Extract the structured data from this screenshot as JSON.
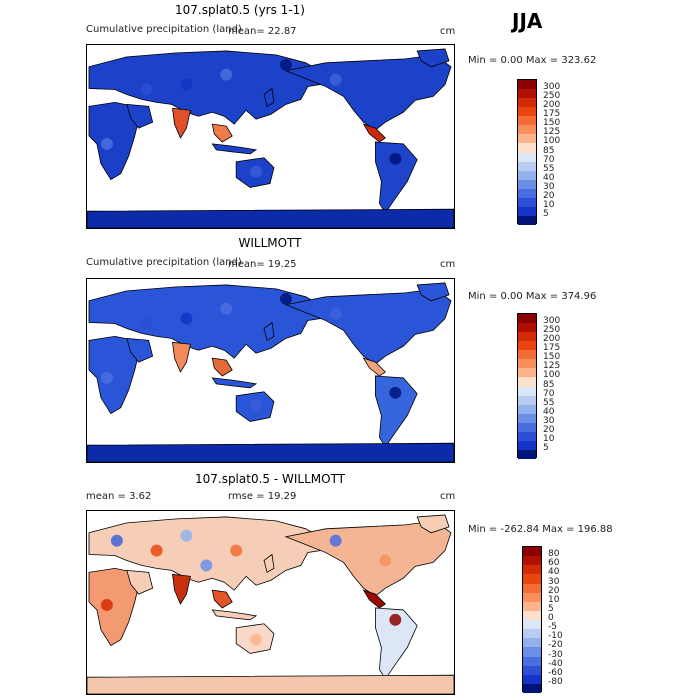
{
  "season": "JJA",
  "panels": [
    {
      "title": "107.splat0.5 (yrs 1-1)",
      "subtitle": "Cumulative precipitation (land)",
      "stat1": "mean=   22.87",
      "stat2": "",
      "units": "cm",
      "minmax": "Min =     0.00 Max = 323.62",
      "levels": [
        "300",
        "250",
        "200",
        "175",
        "150",
        "125",
        "100",
        "85",
        "70",
        "55",
        "40",
        "30",
        "20",
        "10",
        "5"
      ],
      "colors": [
        "#8b0000",
        "#b01000",
        "#d42a05",
        "#e8460e",
        "#f36c35",
        "#f8905e",
        "#fbb48c",
        "#fde0cc",
        "#dbe7f7",
        "#b8cdf1",
        "#93b1ec",
        "#6c8fe6",
        "#4a6ee0",
        "#2c4fd5",
        "#1334c4",
        "#00147a"
      ]
    },
    {
      "title": "WILLMOTT",
      "subtitle": "Cumulative precipitation (land)",
      "stat1": "mean=   19.25",
      "stat2": "",
      "units": "cm",
      "minmax": "Min =     0.00 Max = 374.96",
      "levels": [
        "300",
        "250",
        "200",
        "175",
        "150",
        "125",
        "100",
        "85",
        "70",
        "55",
        "40",
        "30",
        "20",
        "10",
        "5"
      ],
      "colors": [
        "#8b0000",
        "#b01000",
        "#d42a05",
        "#e8460e",
        "#f36c35",
        "#f8905e",
        "#fbb48c",
        "#fde0cc",
        "#dbe7f7",
        "#b8cdf1",
        "#93b1ec",
        "#6c8fe6",
        "#4a6ee0",
        "#2c4fd5",
        "#1334c4",
        "#00147a"
      ]
    },
    {
      "title": "107.splat0.5 - WILLMOTT",
      "subtitle": "mean =     3.62",
      "stat1": "",
      "stat2": "rmse =   19.29",
      "units": "cm",
      "minmax": "Min = -262.84 Max = 196.88",
      "levels": [
        "80",
        "60",
        "40",
        "30",
        "20",
        "10",
        "5",
        "0",
        "-5",
        "-10",
        "-20",
        "-30",
        "-40",
        "-60",
        "-80"
      ],
      "colors": [
        "#8b0000",
        "#b01000",
        "#d42a05",
        "#e8460e",
        "#f36c35",
        "#f8905e",
        "#fbb48c",
        "#fde0cc",
        "#dbe7f7",
        "#b8cdf1",
        "#93b1ec",
        "#6c8fe6",
        "#4a6ee0",
        "#2c4fd5",
        "#1334c4",
        "#00147a"
      ]
    }
  ]
}
